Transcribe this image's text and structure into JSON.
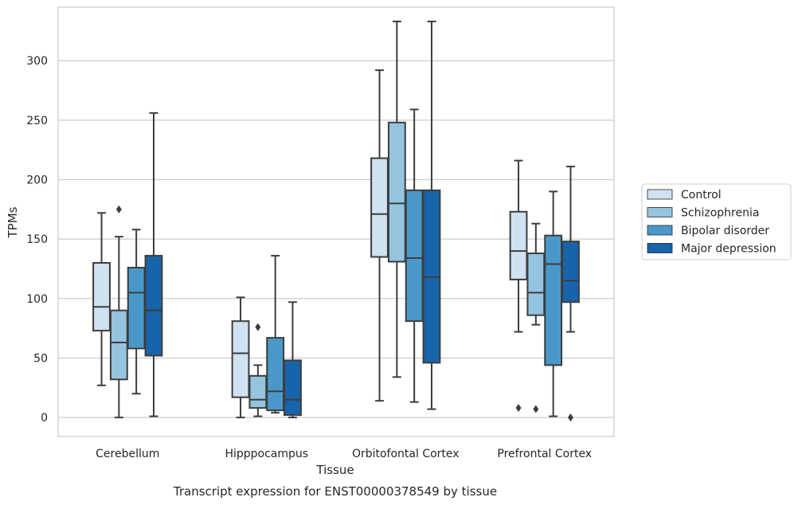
{
  "chart_data": {
    "type": "box",
    "title": "",
    "caption": "Transcript expression for ENST00000378549 by tissue",
    "xlabel": "Tissue",
    "ylabel": "TPMs",
    "ylim": [
      -16,
      345
    ],
    "yticks": [
      0,
      50,
      100,
      150,
      200,
      250,
      300
    ],
    "grid": "horizontal",
    "legend_position": "right",
    "categories": [
      "Cerebellum",
      "Hipppocampus",
      "Orbitofontal Cortex",
      "Prefrontal Cortex"
    ],
    "series": [
      {
        "name": "Control",
        "color": "#d0e1f2",
        "boxes": [
          {
            "whislo": 27,
            "q1": 73,
            "med": 93,
            "q3": 130,
            "whishi": 172,
            "fliers": []
          },
          {
            "whislo": 0,
            "q1": 17,
            "med": 54,
            "q3": 81,
            "whishi": 101,
            "fliers": []
          },
          {
            "whislo": 14,
            "q1": 135,
            "med": 171,
            "q3": 218,
            "whishi": 292,
            "fliers": []
          },
          {
            "whislo": 72,
            "q1": 116,
            "med": 140,
            "q3": 173,
            "whishi": 216,
            "fliers": [
              8
            ]
          }
        ]
      },
      {
        "name": "Schizophrenia",
        "color": "#94c4df",
        "boxes": [
          {
            "whislo": 0,
            "q1": 32,
            "med": 63,
            "q3": 90,
            "whishi": 152,
            "fliers": [
              175
            ]
          },
          {
            "whislo": 1,
            "q1": 8,
            "med": 15,
            "q3": 35,
            "whishi": 44,
            "fliers": [
              76
            ]
          },
          {
            "whislo": 34,
            "q1": 131,
            "med": 180,
            "q3": 248,
            "whishi": 333,
            "fliers": []
          },
          {
            "whislo": 78,
            "q1": 86,
            "med": 105,
            "q3": 138,
            "whishi": 163,
            "fliers": [
              7
            ]
          }
        ]
      },
      {
        "name": "Bipolar disorder",
        "color": "#4a98c9",
        "boxes": [
          {
            "whislo": 20,
            "q1": 58,
            "med": 105,
            "q3": 126,
            "whishi": 158,
            "fliers": []
          },
          {
            "whislo": 4,
            "q1": 6,
            "med": 22,
            "q3": 67,
            "whishi": 136,
            "fliers": []
          },
          {
            "whislo": 13,
            "q1": 81,
            "med": 134,
            "q3": 191,
            "whishi": 259,
            "fliers": []
          },
          {
            "whislo": 1,
            "q1": 44,
            "med": 129,
            "q3": 153,
            "whishi": 190,
            "fliers": []
          }
        ]
      },
      {
        "name": "Major depression",
        "color": "#1764ab",
        "boxes": [
          {
            "whislo": 1,
            "q1": 52,
            "med": 90,
            "q3": 136,
            "whishi": 256,
            "fliers": []
          },
          {
            "whislo": 0,
            "q1": 2,
            "med": 15,
            "q3": 48,
            "whishi": 97,
            "fliers": []
          },
          {
            "whislo": 7,
            "q1": 46,
            "med": 118,
            "q3": 191,
            "whishi": 333,
            "fliers": []
          },
          {
            "whislo": 72,
            "q1": 97,
            "med": 115,
            "q3": 148,
            "whishi": 211,
            "fliers": [
              0
            ]
          }
        ]
      }
    ]
  }
}
